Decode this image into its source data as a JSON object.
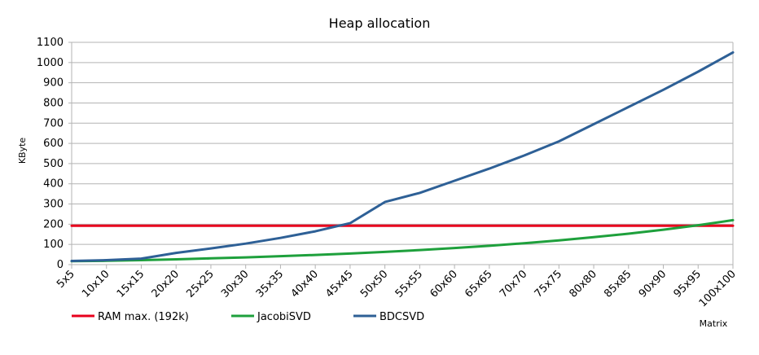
{
  "chart_data": {
    "type": "line",
    "title": "Heap allocation",
    "xlabel": "Matrix",
    "ylabel": "KByte",
    "ylim": [
      0,
      1100
    ],
    "yticks": [
      0,
      100,
      200,
      300,
      400,
      500,
      600,
      700,
      800,
      900,
      1000,
      1100
    ],
    "categories": [
      "5x5",
      "10x10",
      "15x15",
      "20x20",
      "25x25",
      "30x30",
      "35x35",
      "40x40",
      "45x45",
      "50x50",
      "55x55",
      "60x60",
      "65x65",
      "70x70",
      "75x75",
      "80x80",
      "85x85",
      "90x90",
      "95x95",
      "100x100"
    ],
    "grid": true,
    "legend_position": "bottom",
    "series": [
      {
        "name": "RAM max. (192k)",
        "color": "#e8001c",
        "values": [
          192,
          192,
          192,
          192,
          192,
          192,
          192,
          192,
          192,
          192,
          192,
          192,
          192,
          192,
          192,
          192,
          192,
          192,
          192,
          192
        ]
      },
      {
        "name": "JacobiSVD",
        "color": "#1ea03c",
        "values": [
          17,
          19,
          22,
          26,
          31,
          36,
          42,
          48,
          55,
          63,
          72,
          82,
          93,
          106,
          120,
          136,
          153,
          173,
          195,
          220
        ]
      },
      {
        "name": "BDCSVD",
        "color": "#2e6096",
        "values": [
          18,
          22,
          30,
          58,
          80,
          104,
          132,
          165,
          205,
          310,
          355,
          415,
          475,
          540,
          610,
          695,
          780,
          865,
          955,
          1050
        ]
      }
    ]
  }
}
